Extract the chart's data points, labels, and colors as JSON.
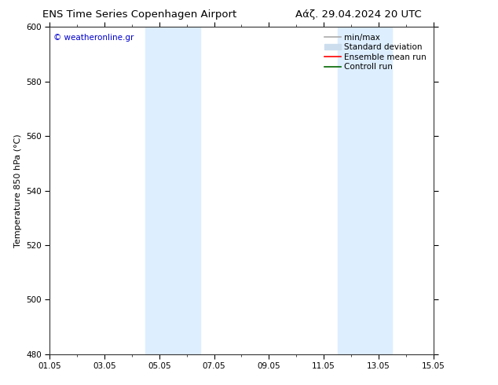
{
  "title_left": "ENS Time Series Copenhagen Airport",
  "title_right": "Αάζ. 29.04.2024 20 UTC",
  "ylabel": "Temperature 850 hPa (°C)",
  "background_color": "#ffffff",
  "plot_bg_color": "#ffffff",
  "xlim_dates": [
    "01.05",
    "03.05",
    "05.05",
    "07.05",
    "09.05",
    "11.05",
    "13.05",
    "15.05"
  ],
  "x_positions": [
    0,
    2,
    4,
    6,
    8,
    10,
    12,
    14
  ],
  "x_min": 0,
  "x_max": 14,
  "ylim": [
    480,
    600
  ],
  "yticks": [
    480,
    500,
    520,
    540,
    560,
    580,
    600
  ],
  "shaded_bands": [
    {
      "x_start": 3.5,
      "x_end": 5.5,
      "color": "#ddeeff"
    },
    {
      "x_start": 10.5,
      "x_end": 12.5,
      "color": "#ddeeff"
    }
  ],
  "watermark_text": "© weatheronline.gr",
  "watermark_color": "#0000cc",
  "legend_entries": [
    {
      "label": "min/max",
      "color": "#aaaaaa",
      "lw": 1.2,
      "ls": "-",
      "type": "line"
    },
    {
      "label": "Standard deviation",
      "color": "#ccddee",
      "lw": 7,
      "ls": "-",
      "type": "patch"
    },
    {
      "label": "Ensemble mean run",
      "color": "#ff0000",
      "lw": 1.2,
      "ls": "-",
      "type": "line"
    },
    {
      "label": "Controll run",
      "color": "#006600",
      "lw": 1.2,
      "ls": "-",
      "type": "line"
    }
  ],
  "tick_font_size": 7.5,
  "label_font_size": 8,
  "title_font_size": 9.5,
  "watermark_font_size": 7.5
}
